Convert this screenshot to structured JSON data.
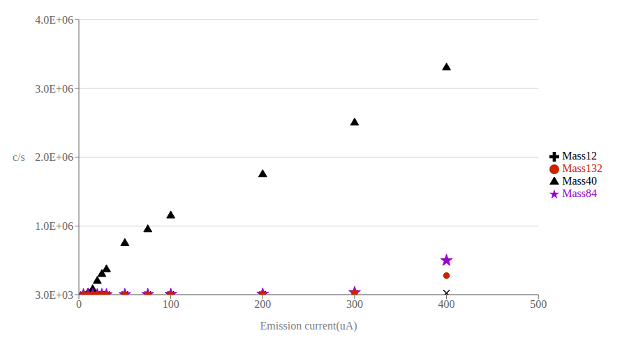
{
  "chart_data": {
    "type": "scatter",
    "xlabel": "Emission current(uA)",
    "ylabel": "c/s",
    "xlim": [
      0,
      500
    ],
    "ylim": [
      3000,
      4000000
    ],
    "xticks": [
      0,
      100,
      200,
      300,
      400,
      500
    ],
    "yticks": [
      {
        "value": 3000,
        "label": "3.0E+03"
      },
      {
        "value": 1000000,
        "label": "1.0E+06"
      },
      {
        "value": 2000000,
        "label": "2.0E+06"
      },
      {
        "value": 3000000,
        "label": "3.0E+06"
      },
      {
        "value": 4000000,
        "label": "4.0E+06"
      }
    ],
    "grid": "y",
    "legend": "right",
    "x": [
      5,
      10,
      15,
      20,
      25,
      30,
      50,
      75,
      100,
      200,
      300,
      400
    ],
    "series": [
      {
        "name": "Mass40",
        "color": "#000000",
        "marker": "triangle",
        "values": [
          5000,
          30000,
          80000,
          200000,
          300000,
          370000,
          750000,
          950000,
          1150000,
          1750000,
          2500000,
          3300000
        ]
      },
      {
        "name": "Mass12",
        "color": "#000000",
        "marker": "x",
        "values": [
          3500,
          3500,
          3500,
          3500,
          4000,
          4500,
          5000,
          6000,
          7000,
          9000,
          18000,
          25000
        ]
      },
      {
        "name": "Mass84",
        "color": "#9900cc",
        "marker": "star",
        "values": [
          3500,
          3500,
          3500,
          4000,
          4500,
          5000,
          5500,
          6500,
          8000,
          12000,
          35000,
          500000
        ]
      },
      {
        "name": "Mass132",
        "color": "#cc2200",
        "marker": "circle",
        "values": [
          3500,
          3500,
          3500,
          3500,
          4000,
          4500,
          5000,
          5500,
          6500,
          9000,
          28000,
          280000
        ]
      }
    ]
  }
}
